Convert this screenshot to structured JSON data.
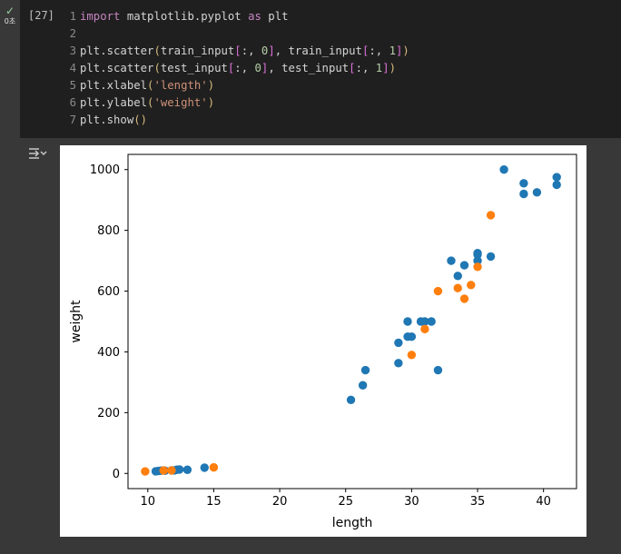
{
  "cell": {
    "status_icon": "check-icon",
    "run_time": "0초",
    "exec_count": "[27]",
    "code_lines": [
      {
        "n": "1",
        "tokens": [
          {
            "t": "import",
            "c": "kw"
          },
          {
            "t": " matplotlib.pyplot ",
            "c": ""
          },
          {
            "t": "as",
            "c": "kw"
          },
          {
            "t": " plt",
            "c": ""
          }
        ]
      },
      {
        "n": "2",
        "tokens": []
      },
      {
        "n": "3",
        "tokens": [
          {
            "t": "plt.scatter",
            "c": ""
          },
          {
            "t": "(",
            "c": "par"
          },
          {
            "t": "train_input",
            "c": ""
          },
          {
            "t": "[",
            "c": "brk"
          },
          {
            "t": ":, ",
            "c": ""
          },
          {
            "t": "0",
            "c": "num"
          },
          {
            "t": "]",
            "c": "brk"
          },
          {
            "t": ", train_input",
            "c": ""
          },
          {
            "t": "[",
            "c": "brk"
          },
          {
            "t": ":, ",
            "c": ""
          },
          {
            "t": "1",
            "c": "num"
          },
          {
            "t": "]",
            "c": "brk"
          },
          {
            "t": ")",
            "c": "par"
          }
        ]
      },
      {
        "n": "4",
        "tokens": [
          {
            "t": "plt.scatter",
            "c": ""
          },
          {
            "t": "(",
            "c": "par"
          },
          {
            "t": "test_input",
            "c": ""
          },
          {
            "t": "[",
            "c": "brk"
          },
          {
            "t": ":, ",
            "c": ""
          },
          {
            "t": "0",
            "c": "num"
          },
          {
            "t": "]",
            "c": "brk"
          },
          {
            "t": ", test_input",
            "c": ""
          },
          {
            "t": "[",
            "c": "brk"
          },
          {
            "t": ":, ",
            "c": ""
          },
          {
            "t": "1",
            "c": "num"
          },
          {
            "t": "]",
            "c": "brk"
          },
          {
            "t": ")",
            "c": "par"
          }
        ]
      },
      {
        "n": "5",
        "tokens": [
          {
            "t": "plt.xlabel",
            "c": ""
          },
          {
            "t": "(",
            "c": "par"
          },
          {
            "t": "'length'",
            "c": "str"
          },
          {
            "t": ")",
            "c": "par"
          }
        ]
      },
      {
        "n": "6",
        "tokens": [
          {
            "t": "plt.ylabel",
            "c": ""
          },
          {
            "t": "(",
            "c": "par"
          },
          {
            "t": "'weight'",
            "c": "str"
          },
          {
            "t": ")",
            "c": "par"
          }
        ]
      },
      {
        "n": "7",
        "tokens": [
          {
            "t": "plt.show",
            "c": ""
          },
          {
            "t": "()",
            "c": "par"
          }
        ]
      }
    ]
  },
  "output": {
    "toggle_icon": "output-toggle-icon"
  },
  "colors": {
    "series1": "#1f77b4",
    "series2": "#ff7f0e"
  },
  "chart_data": {
    "type": "scatter",
    "xlabel": "length",
    "ylabel": "weight",
    "xlim": [
      8.5,
      42.5
    ],
    "ylim": [
      -50,
      1050
    ],
    "xticks": [
      10,
      15,
      20,
      25,
      30,
      35,
      40
    ],
    "yticks": [
      0,
      200,
      400,
      600,
      800,
      1000
    ],
    "grid": false,
    "series": [
      {
        "color": "#1f77b4",
        "points": [
          [
            10.6,
            7
          ],
          [
            10.8,
            8
          ],
          [
            11.0,
            9
          ],
          [
            11.3,
            9
          ],
          [
            11.8,
            10
          ],
          [
            12.0,
            10
          ],
          [
            12.2,
            12
          ],
          [
            12.4,
            13
          ],
          [
            13.0,
            12
          ],
          [
            14.3,
            19
          ],
          [
            25.4,
            242
          ],
          [
            26.3,
            290
          ],
          [
            26.5,
            340
          ],
          [
            29.0,
            363
          ],
          [
            29.0,
            430
          ],
          [
            29.7,
            450
          ],
          [
            29.7,
            500
          ],
          [
            30.0,
            450
          ],
          [
            30.7,
            500
          ],
          [
            31.0,
            500
          ],
          [
            31.5,
            500
          ],
          [
            32.0,
            340
          ],
          [
            33.0,
            700
          ],
          [
            33.5,
            650
          ],
          [
            34.0,
            685
          ],
          [
            35.0,
            700
          ],
          [
            35.0,
            725
          ],
          [
            35.0,
            720
          ],
          [
            36.0,
            714
          ],
          [
            37.0,
            1000
          ],
          [
            38.5,
            920
          ],
          [
            38.5,
            955
          ],
          [
            39.5,
            925
          ],
          [
            41.0,
            975
          ],
          [
            41.0,
            950
          ]
        ]
      },
      {
        "color": "#ff7f0e",
        "points": [
          [
            9.8,
            6.7
          ],
          [
            11.2,
            9.8
          ],
          [
            11.8,
            9.9
          ],
          [
            15.0,
            19.9
          ],
          [
            30.0,
            390
          ],
          [
            31.0,
            475
          ],
          [
            32.0,
            600
          ],
          [
            33.5,
            610
          ],
          [
            34.0,
            575
          ],
          [
            34.5,
            620
          ],
          [
            35.0,
            680
          ],
          [
            36.0,
            850
          ]
        ]
      }
    ]
  }
}
